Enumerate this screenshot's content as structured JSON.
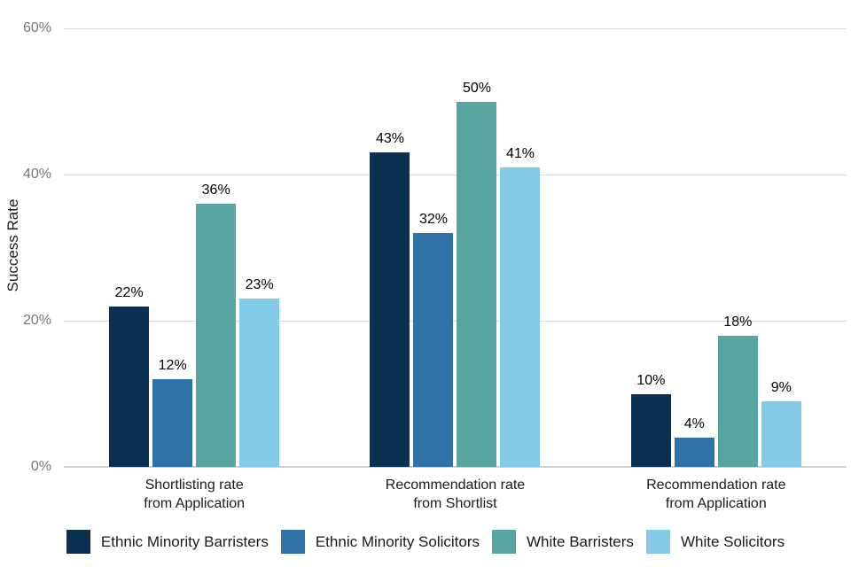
{
  "chart_data": {
    "type": "bar",
    "title": "",
    "xlabel": "",
    "ylabel": "Success Rate",
    "ylim": [
      0,
      60
    ],
    "yticks": [
      0,
      20,
      40,
      60
    ],
    "ytick_labels": [
      "0%",
      "20%",
      "40%",
      "60%"
    ],
    "grid": "horizontal",
    "legend_position": "bottom",
    "categories": [
      "Shortlisting rate\nfrom Application",
      "Recommendation rate\nfrom Shortlist",
      "Recommendation rate\nfrom Application"
    ],
    "series": [
      {
        "name": "Ethnic Minority Barristers",
        "color": "#0c3052",
        "values": [
          22,
          43,
          10
        ],
        "value_labels": [
          "22%",
          "43%",
          "10%"
        ]
      },
      {
        "name": "Ethnic Minority Solicitors",
        "color": "#2e73a6",
        "values": [
          12,
          32,
          4
        ],
        "value_labels": [
          "12%",
          "32%",
          "4%"
        ]
      },
      {
        "name": "White Barristers",
        "color": "#57a5a0",
        "values": [
          36,
          50,
          18
        ],
        "value_labels": [
          "36%",
          "50%",
          "18%"
        ]
      },
      {
        "name": "White Solicitors",
        "color": "#83cbe6",
        "values": [
          23,
          41,
          9
        ],
        "value_labels": [
          "23%",
          "41%",
          "9%"
        ]
      }
    ]
  },
  "colors": {
    "gridline": "#dadada",
    "axis_line": "#cfcfcf",
    "tick_text": "#757575",
    "category_text": "#1a1a1a",
    "value_text": "#000000",
    "background": "#ffffff"
  }
}
